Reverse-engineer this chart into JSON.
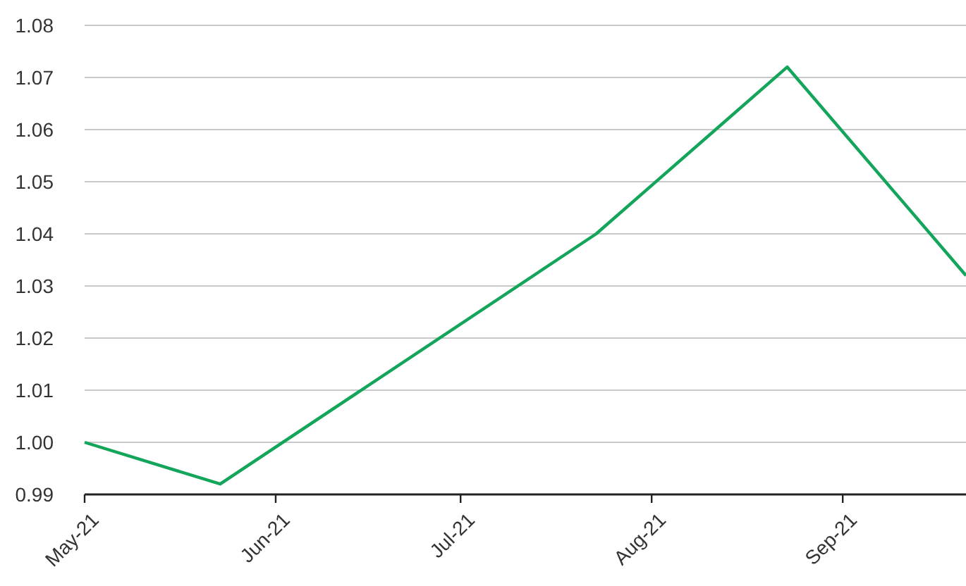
{
  "chart_data": {
    "type": "line",
    "x": [
      "2021-05-01",
      "2021-05-23",
      "2021-07-23",
      "2021-08-23",
      "2021-09-21"
    ],
    "series": [
      {
        "color": "#13a55a",
        "values": [
          1.0,
          0.992,
          1.04,
          1.072,
          1.032
        ]
      }
    ],
    "xlim": [
      "2021-05-01",
      "2021-09-21"
    ],
    "xticks": [
      {
        "value": "2021-05-01",
        "label": "May-21"
      },
      {
        "value": "2021-06-01",
        "label": "Jun-21"
      },
      {
        "value": "2021-07-01",
        "label": "Jul-21"
      },
      {
        "value": "2021-08-01",
        "label": "Aug-21"
      },
      {
        "value": "2021-09-01",
        "label": "Sep-21"
      }
    ],
    "ylim": [
      0.99,
      1.08
    ],
    "yticks": [
      {
        "value": 0.99,
        "label": "0.99"
      },
      {
        "value": 1.0,
        "label": "1.00"
      },
      {
        "value": 1.01,
        "label": "1.01"
      },
      {
        "value": 1.02,
        "label": "1.02"
      },
      {
        "value": 1.03,
        "label": "1.03"
      },
      {
        "value": 1.04,
        "label": "1.04"
      },
      {
        "value": 1.05,
        "label": "1.05"
      },
      {
        "value": 1.06,
        "label": "1.06"
      },
      {
        "value": 1.07,
        "label": "1.07"
      },
      {
        "value": 1.08,
        "label": "1.08"
      }
    ],
    "grid": "y",
    "marker": "none",
    "line_style": "solid"
  }
}
